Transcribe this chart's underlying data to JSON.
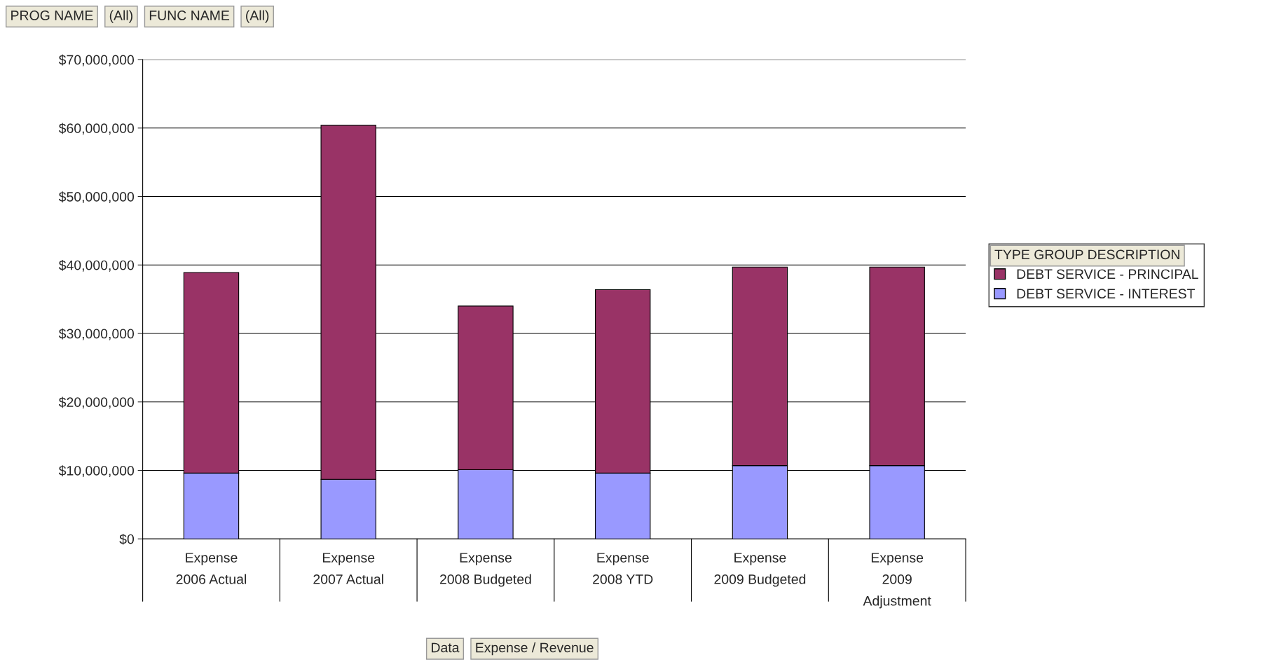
{
  "chart_data": {
    "type": "bar",
    "stacked": true,
    "categories": [
      "Expense\n2006 Actual",
      "Expense\n2007 Actual",
      "Expense\n2008 Budgeted",
      "Expense\n2008 YTD",
      "Expense\n2009 Budgeted",
      "Expense\n2009\nAdjustment"
    ],
    "series": [
      {
        "name": "DEBT SERVICE - INTEREST",
        "color": "#9999ff",
        "values": [
          9600000,
          8700000,
          10100000,
          9600000,
          10700000,
          10700000
        ]
      },
      {
        "name": "DEBT SERVICE - PRINCIPAL",
        "color": "#993366",
        "values": [
          29300000,
          51700000,
          23900000,
          26800000,
          29000000,
          29000000
        ]
      }
    ],
    "ylim": [
      0,
      70000000
    ],
    "yticks": [
      {
        "value": 0,
        "label": "$0"
      },
      {
        "value": 10000000,
        "label": "$10,000,000"
      },
      {
        "value": 20000000,
        "label": "$20,000,000"
      },
      {
        "value": 30000000,
        "label": "$30,000,000"
      },
      {
        "value": 40000000,
        "label": "$40,000,000"
      },
      {
        "value": 50000000,
        "label": "$50,000,000"
      },
      {
        "value": 60000000,
        "label": "$60,000,000"
      },
      {
        "value": 70000000,
        "label": "$70,000,000"
      }
    ],
    "grid": "y",
    "legend": "right",
    "legend_title": "TYPE GROUP DESCRIPTION",
    "annotations": [
      "PROG NAME",
      "(All)",
      "FUNC NAME",
      "(All)",
      "Data",
      "Expense / Revenue"
    ]
  }
}
